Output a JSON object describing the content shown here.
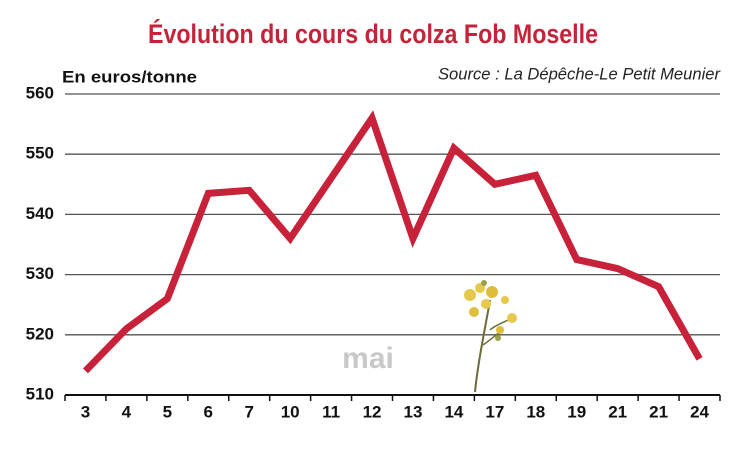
{
  "chart_data": {
    "type": "line",
    "title": "Évolution du cours du colza Fob Moselle",
    "y_label": "En euros/tonne",
    "source": "Source : La Dépêche-Le Petit Meunier",
    "annotation": "mai",
    "categories": [
      "3",
      "4",
      "5",
      "6",
      "7",
      "10",
      "11",
      "12",
      "13",
      "14",
      "17",
      "18",
      "19",
      "21",
      "21",
      "24"
    ],
    "values": [
      514,
      521,
      526,
      543.5,
      544,
      536,
      546,
      556,
      536,
      551,
      545,
      546.5,
      532.5,
      531,
      528,
      516
    ],
    "color": "#c8223a",
    "ylim": [
      510,
      560
    ],
    "yticks": [
      510,
      520,
      530,
      540,
      550,
      560
    ],
    "grid": true
  }
}
